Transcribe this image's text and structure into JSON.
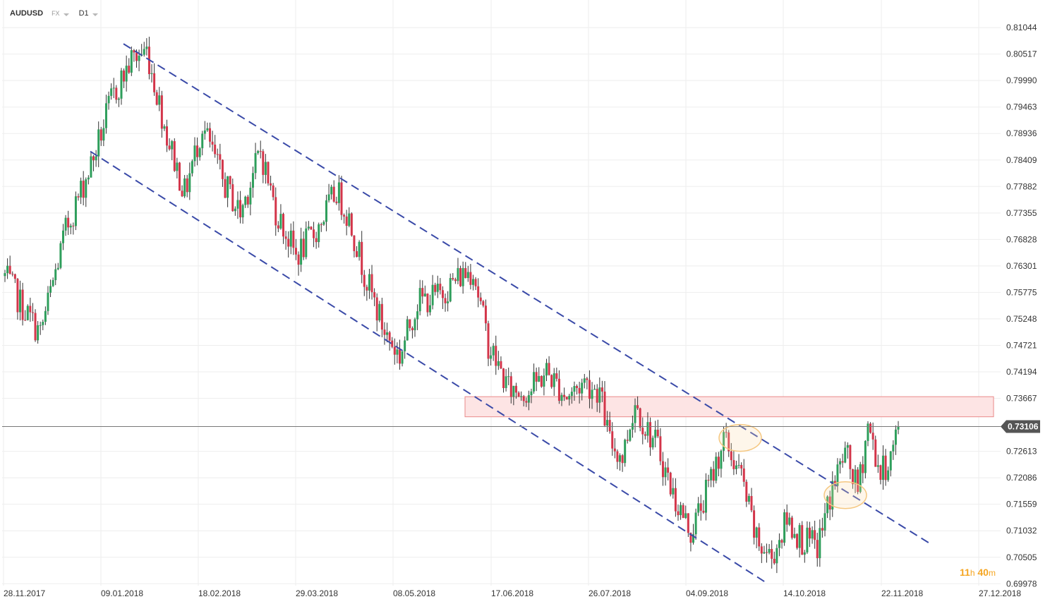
{
  "header": {
    "symbol": "AUDUSD",
    "market": "FX",
    "timeframe": "D1"
  },
  "timer": {
    "hours": "11",
    "hours_unit": "h",
    "minutes": "40",
    "minutes_unit": "m"
  },
  "colors": {
    "up": "#2e9e5b",
    "down": "#d3354a",
    "channel": "#3a4aa8",
    "zone_fill": "#fde4e4",
    "zone_stroke": "#e98a8a",
    "grid": "#eeeeee",
    "price_tag": "#555555",
    "highlight": "#f5c780",
    "timer": "#f5a623"
  },
  "chart_data": {
    "type": "candlestick",
    "x_axis": {
      "tick_labels": [
        "28.11.2017",
        "09.01.2018",
        "18.02.2018",
        "29.03.2018",
        "08.05.2018",
        "17.06.2018",
        "26.07.2018",
        "04.09.2018",
        "14.10.2018",
        "22.11.2018",
        "27.12.2018"
      ]
    },
    "y_axis": {
      "tick_labels": [
        "0.81044",
        "0.80517",
        "0.79990",
        "0.79463",
        "0.78936",
        "0.78409",
        "0.77882",
        "0.77355",
        "0.76828",
        "0.76301",
        "0.75775",
        "0.75248",
        "0.74721",
        "0.74194",
        "0.73667",
        "0.73106",
        "0.72613",
        "0.72086",
        "0.71559",
        "0.71032",
        "0.70505",
        "0.69978"
      ],
      "range": [
        0.6994,
        0.8134
      ]
    },
    "current_price": 0.73106,
    "resistance_zone": {
      "from": 0.733,
      "to": 0.737
    },
    "channel": {
      "upper": [
        {
          "x": 0.0,
          "y": 0.8072
        },
        {
          "x": 1.0,
          "y": 0.7076
        }
      ],
      "lower": [
        {
          "x": 0.0,
          "y": 0.7858
        },
        {
          "x": 1.0,
          "y": 0.6998
        }
      ]
    },
    "highlights": [
      {
        "x": "04.09.2018",
        "y": 0.7288
      },
      {
        "x": "14.10.2018",
        "y": 0.7174
      }
    ],
    "anchors": [
      {
        "i": 0,
        "c": 0.761
      },
      {
        "i": 8,
        "c": 0.754
      },
      {
        "i": 14,
        "c": 0.7495
      },
      {
        "i": 24,
        "c": 0.77
      },
      {
        "i": 35,
        "c": 0.7845
      },
      {
        "i": 42,
        "c": 0.796
      },
      {
        "i": 50,
        "c": 0.804
      },
      {
        "i": 56,
        "c": 0.806
      },
      {
        "i": 64,
        "c": 0.789
      },
      {
        "i": 71,
        "c": 0.7775
      },
      {
        "i": 78,
        "c": 0.791
      },
      {
        "i": 86,
        "c": 0.78
      },
      {
        "i": 93,
        "c": 0.7735
      },
      {
        "i": 101,
        "c": 0.786
      },
      {
        "i": 107,
        "c": 0.774
      },
      {
        "i": 115,
        "c": 0.765
      },
      {
        "i": 123,
        "c": 0.77
      },
      {
        "i": 131,
        "c": 0.778
      },
      {
        "i": 136,
        "c": 0.7725
      },
      {
        "i": 143,
        "c": 0.76
      },
      {
        "i": 150,
        "c": 0.75
      },
      {
        "i": 156,
        "c": 0.745
      },
      {
        "i": 163,
        "c": 0.756
      },
      {
        "i": 171,
        "c": 0.757
      },
      {
        "i": 180,
        "c": 0.761
      },
      {
        "i": 185,
        "c": 0.7625
      },
      {
        "i": 191,
        "c": 0.7475
      },
      {
        "i": 199,
        "c": 0.7385
      },
      {
        "i": 207,
        "c": 0.738
      },
      {
        "i": 214,
        "c": 0.742
      },
      {
        "i": 222,
        "c": 0.737
      },
      {
        "i": 229,
        "c": 0.74
      },
      {
        "i": 235,
        "c": 0.738
      },
      {
        "i": 239,
        "c": 0.728
      },
      {
        "i": 244,
        "c": 0.725
      },
      {
        "i": 249,
        "c": 0.736
      },
      {
        "i": 253,
        "c": 0.731
      },
      {
        "i": 258,
        "c": 0.727
      },
      {
        "i": 264,
        "c": 0.7175
      },
      {
        "i": 271,
        "c": 0.71
      },
      {
        "i": 278,
        "c": 0.719
      },
      {
        "i": 284,
        "c": 0.7285
      },
      {
        "i": 291,
        "c": 0.721
      },
      {
        "i": 297,
        "c": 0.708
      },
      {
        "i": 303,
        "c": 0.705
      },
      {
        "i": 309,
        "c": 0.7125
      },
      {
        "i": 315,
        "c": 0.7085
      },
      {
        "i": 321,
        "c": 0.707
      },
      {
        "i": 327,
        "c": 0.719
      },
      {
        "i": 332,
        "c": 0.726
      },
      {
        "i": 337,
        "c": 0.718
      },
      {
        "i": 341,
        "c": 0.7315
      },
      {
        "i": 346,
        "c": 0.7215
      },
      {
        "i": 350,
        "c": 0.725
      },
      {
        "i": 353,
        "c": 0.731
      }
    ]
  }
}
